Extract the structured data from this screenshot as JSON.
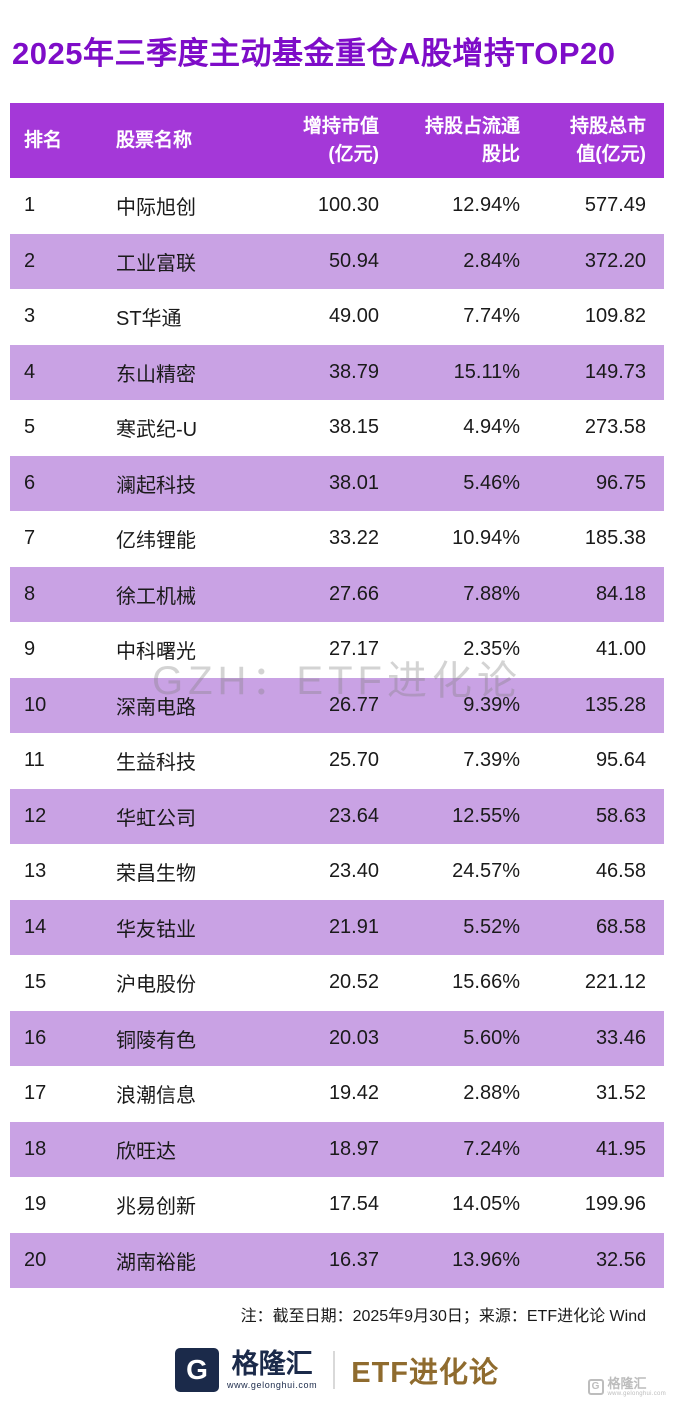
{
  "title": "2025年三季度主动基金重仓A股增持TOP20",
  "watermark": "GZH：ETF进化论",
  "footnote": "注：截至日期：2025年9月30日；来源：ETF进化论 Wind",
  "footer": {
    "brand_icon": "G",
    "brand": "格隆汇",
    "brand_url": "www.gelonghui.com",
    "partner_brand": "ETF进化论"
  },
  "corner": {
    "icon": "G",
    "brand": "格隆汇",
    "url": "www.gelonghui.com"
  },
  "colors": {
    "title_purple": "#7E0CC8",
    "header_bg": "#A438D8",
    "row_alt_bg": "#C9A2E4",
    "header_text": "#FFFFFF",
    "body_text": "#1A1A1A",
    "brand_navy": "#1B2A4A",
    "brand_gold": "#8F6B2E"
  },
  "chart_data": {
    "type": "table",
    "title": "2025年三季度主动基金重仓A股增持TOP20",
    "columns": [
      "排名",
      "股票名称",
      "增持市值(亿元)",
      "持股占流通股比",
      "持股总市值(亿元)"
    ],
    "header_lines": [
      [
        "排名"
      ],
      [
        "股票名称"
      ],
      [
        "增持市值",
        "(亿元)"
      ],
      [
        "持股占流通",
        "股比"
      ],
      [
        "持股总市",
        "值(亿元)"
      ]
    ],
    "rows": [
      {
        "rank": "1",
        "name": "中际旭创",
        "increase": "100.30",
        "ratio": "12.94%",
        "total": "577.49"
      },
      {
        "rank": "2",
        "name": "工业富联",
        "increase": "50.94",
        "ratio": "2.84%",
        "total": "372.20"
      },
      {
        "rank": "3",
        "name": "ST华通",
        "increase": "49.00",
        "ratio": "7.74%",
        "total": "109.82"
      },
      {
        "rank": "4",
        "name": "东山精密",
        "increase": "38.79",
        "ratio": "15.11%",
        "total": "149.73"
      },
      {
        "rank": "5",
        "name": "寒武纪-U",
        "increase": "38.15",
        "ratio": "4.94%",
        "total": "273.58"
      },
      {
        "rank": "6",
        "name": "澜起科技",
        "increase": "38.01",
        "ratio": "5.46%",
        "total": "96.75"
      },
      {
        "rank": "7",
        "name": "亿纬锂能",
        "increase": "33.22",
        "ratio": "10.94%",
        "total": "185.38"
      },
      {
        "rank": "8",
        "name": "徐工机械",
        "increase": "27.66",
        "ratio": "7.88%",
        "total": "84.18"
      },
      {
        "rank": "9",
        "name": "中科曙光",
        "increase": "27.17",
        "ratio": "2.35%",
        "total": "41.00"
      },
      {
        "rank": "10",
        "name": "深南电路",
        "increase": "26.77",
        "ratio": "9.39%",
        "total": "135.28"
      },
      {
        "rank": "11",
        "name": "生益科技",
        "increase": "25.70",
        "ratio": "7.39%",
        "total": "95.64"
      },
      {
        "rank": "12",
        "name": "华虹公司",
        "increase": "23.64",
        "ratio": "12.55%",
        "total": "58.63"
      },
      {
        "rank": "13",
        "name": "荣昌生物",
        "increase": "23.40",
        "ratio": "24.57%",
        "total": "46.58"
      },
      {
        "rank": "14",
        "name": "华友钴业",
        "increase": "21.91",
        "ratio": "5.52%",
        "total": "68.58"
      },
      {
        "rank": "15",
        "name": "沪电股份",
        "increase": "20.52",
        "ratio": "15.66%",
        "total": "221.12"
      },
      {
        "rank": "16",
        "name": "铜陵有色",
        "increase": "20.03",
        "ratio": "5.60%",
        "total": "33.46"
      },
      {
        "rank": "17",
        "name": "浪潮信息",
        "increase": "19.42",
        "ratio": "2.88%",
        "total": "31.52"
      },
      {
        "rank": "18",
        "name": "欣旺达",
        "increase": "18.97",
        "ratio": "7.24%",
        "total": "41.95"
      },
      {
        "rank": "19",
        "name": "兆易创新",
        "increase": "17.54",
        "ratio": "14.05%",
        "total": "199.96"
      },
      {
        "rank": "20",
        "name": "湖南裕能",
        "increase": "16.37",
        "ratio": "13.96%",
        "total": "32.56"
      }
    ]
  }
}
